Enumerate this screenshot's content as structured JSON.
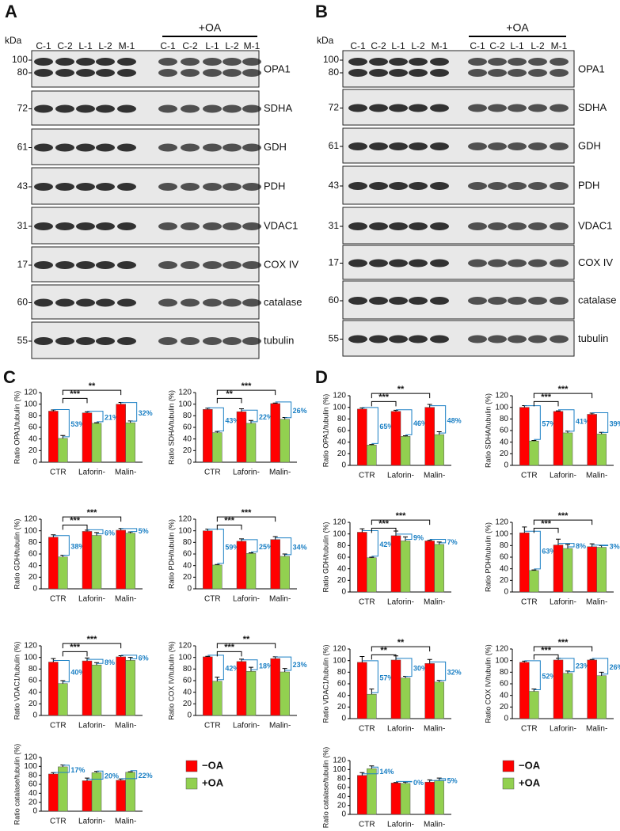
{
  "blots": [
    {
      "panel": "A",
      "unit": "kDa",
      "treatment": "+OA",
      "lanes": [
        "C-1",
        "C-2",
        "L-1",
        "L-2",
        "M-1",
        "C-1",
        "C-2",
        "L-1",
        "L-2",
        "M-1"
      ],
      "rows": [
        {
          "markers": [
            "100",
            "80"
          ],
          "protein": "OPA1"
        },
        {
          "markers": [
            "72"
          ],
          "protein": "SDHA"
        },
        {
          "markers": [
            "61"
          ],
          "protein": "GDH"
        },
        {
          "markers": [
            "43"
          ],
          "protein": "PDH"
        },
        {
          "markers": [
            "31"
          ],
          "protein": "VDAC1"
        },
        {
          "markers": [
            "17"
          ],
          "protein": "COX IV"
        },
        {
          "markers": [
            "60"
          ],
          "protein": "catalase"
        },
        {
          "markers": [
            "55"
          ],
          "protein": "tubulin"
        }
      ]
    },
    {
      "panel": "B",
      "unit": "kDa",
      "treatment": "+OA",
      "lanes": [
        "C-1",
        "C-2",
        "L-1",
        "L-2",
        "M-1",
        "C-1",
        "C-2",
        "L-1",
        "L-2",
        "M-1"
      ],
      "rows": [
        {
          "markers": [
            "100",
            "80"
          ],
          "protein": "OPA1"
        },
        {
          "markers": [
            "72"
          ],
          "protein": "SDHA"
        },
        {
          "markers": [
            "61"
          ],
          "protein": "GDH"
        },
        {
          "markers": [
            "43"
          ],
          "protein": "PDH"
        },
        {
          "markers": [
            "31"
          ],
          "protein": "VDAC1"
        },
        {
          "markers": [
            "17"
          ],
          "protein": "COX IV"
        },
        {
          "markers": [
            "60"
          ],
          "protein": "catalase"
        },
        {
          "markers": [
            "55"
          ],
          "protein": "tubulin"
        }
      ]
    }
  ],
  "chart_panels": [
    "C",
    "D"
  ],
  "chart_data": [
    {
      "type": "bar",
      "ylabel": "Ratio OPA1/tubulin (%)",
      "categories": [
        "CTR",
        "Laforin-",
        "Malin-"
      ],
      "ylim": [
        0,
        120
      ],
      "yticks": [
        0,
        20,
        40,
        60,
        80,
        100,
        120
      ],
      "series": [
        {
          "name": "−OA",
          "color": "#ff0000",
          "values": [
            88,
            85,
            100
          ],
          "errors": [
            2,
            2,
            3
          ]
        },
        {
          "name": "+OA",
          "color": "#92d050",
          "values": [
            41,
            67,
            68
          ],
          "errors": [
            5,
            1,
            3
          ]
        }
      ],
      "annotations": [
        "53%",
        "21%",
        "32%"
      ],
      "significance": [
        "***",
        "**"
      ]
    },
    {
      "type": "bar",
      "ylabel": "Ratio SDHA/tubulin (%)",
      "categories": [
        "CTR",
        "Laforin-",
        "Malin-"
      ],
      "ylim": [
        0,
        120
      ],
      "yticks": [
        0,
        20,
        40,
        60,
        80,
        100,
        120
      ],
      "series": [
        {
          "name": "−OA",
          "color": "#ff0000",
          "values": [
            91,
            87,
            101
          ],
          "errors": [
            2,
            5,
            1
          ]
        },
        {
          "name": "+OA",
          "color": "#92d050",
          "values": [
            51,
            67,
            74
          ],
          "errors": [
            2,
            5,
            3
          ]
        }
      ],
      "annotations": [
        "43%",
        "22%",
        "26%"
      ],
      "significance": [
        "**",
        "***"
      ]
    },
    {
      "type": "bar",
      "ylabel": "Ratio GDH/tubulin (%)",
      "categories": [
        "CTR",
        "Laforin-",
        "Malin-"
      ],
      "ylim": [
        0,
        120
      ],
      "yticks": [
        0,
        20,
        40,
        60,
        80,
        100,
        120
      ],
      "series": [
        {
          "name": "−OA",
          "color": "#ff0000",
          "values": [
            89,
            99,
            101
          ],
          "errors": [
            4,
            2,
            3
          ]
        },
        {
          "name": "+OA",
          "color": "#92d050",
          "values": [
            55,
            92,
            96
          ],
          "errors": [
            3,
            5,
            2
          ]
        }
      ],
      "annotations": [
        "38%",
        "6%",
        "5%"
      ],
      "significance": [
        "***",
        "***"
      ]
    },
    {
      "type": "bar",
      "ylabel": "Ratio PDH/tubulin (%)",
      "categories": [
        "CTR",
        "Laforin-",
        "Malin-"
      ],
      "ylim": [
        0,
        120
      ],
      "yticks": [
        0,
        20,
        40,
        60,
        80,
        100,
        120
      ],
      "series": [
        {
          "name": "−OA",
          "color": "#ff0000",
          "values": [
            100,
            82,
            85
          ],
          "errors": [
            3,
            4,
            5
          ]
        },
        {
          "name": "+OA",
          "color": "#92d050",
          "values": [
            41,
            61,
            56
          ],
          "errors": [
            1,
            1,
            4
          ]
        }
      ],
      "annotations": [
        "59%",
        "25%",
        "34%"
      ],
      "significance": [
        "***",
        "***"
      ]
    },
    {
      "type": "bar",
      "ylabel": "Ratio VDAC1/tubulin (%)",
      "categories": [
        "CTR",
        "Laforin-",
        "Malin-"
      ],
      "ylim": [
        0,
        120
      ],
      "yticks": [
        0,
        20,
        40,
        60,
        80,
        100,
        120
      ],
      "series": [
        {
          "name": "−OA",
          "color": "#ff0000",
          "values": [
            92,
            94,
            101
          ],
          "errors": [
            6,
            5,
            2
          ]
        },
        {
          "name": "+OA",
          "color": "#92d050",
          "values": [
            55,
            87,
            95
          ],
          "errors": [
            5,
            4,
            5
          ]
        }
      ],
      "annotations": [
        "40%",
        "8%",
        "6%"
      ],
      "significance": [
        "***",
        "***"
      ]
    },
    {
      "type": "bar",
      "ylabel": "Ratio COX IV/tubulin (%)",
      "categories": [
        "CTR",
        "Laforin-",
        "Malin-"
      ],
      "ylim": [
        0,
        120
      ],
      "yticks": [
        0,
        20,
        40,
        60,
        80,
        100,
        120
      ],
      "series": [
        {
          "name": "−OA",
          "color": "#ff0000",
          "values": [
            101,
            93,
            98
          ],
          "errors": [
            1,
            4,
            3
          ]
        },
        {
          "name": "+OA",
          "color": "#92d050",
          "values": [
            59,
            76,
            75
          ],
          "errors": [
            7,
            7,
            6
          ]
        }
      ],
      "annotations": [
        "42%",
        "18%",
        "23%"
      ],
      "significance": [
        "***",
        "**"
      ]
    },
    {
      "type": "bar",
      "ylabel": "Ratio catalase/tubulin (%)",
      "categories": [
        "CTR",
        "Laforin-",
        "Malin-"
      ],
      "ylim": [
        0,
        120
      ],
      "yticks": [
        0,
        20,
        40,
        60,
        80,
        100,
        120
      ],
      "series": [
        {
          "name": "−OA",
          "color": "#ff0000",
          "values": [
            83,
            68,
            69
          ],
          "errors": [
            3,
            6,
            3
          ]
        },
        {
          "name": "+OA",
          "color": "#92d050",
          "values": [
            99,
            86,
            87
          ],
          "errors": [
            4,
            3,
            1
          ]
        }
      ],
      "annotations": [
        "17%",
        "20%",
        "22%"
      ],
      "significance": []
    },
    {
      "type": "bar",
      "ylabel": "Ratio OPA1/tubulin (%)",
      "categories": [
        "CTR",
        "Laforin-",
        "Malin-"
      ],
      "ylim": [
        0,
        120
      ],
      "yticks": [
        0,
        20,
        40,
        60,
        80,
        100,
        120
      ],
      "series": [
        {
          "name": "−OA",
          "color": "#ff0000",
          "values": [
            97,
            93,
            100
          ],
          "errors": [
            2,
            2,
            5
          ]
        },
        {
          "name": "+OA",
          "color": "#92d050",
          "values": [
            35,
            50,
            53
          ],
          "errors": [
            1,
            1,
            5
          ]
        }
      ],
      "annotations": [
        "65%",
        "46%",
        "48%"
      ],
      "significance": [
        "***",
        "**"
      ]
    },
    {
      "type": "bar",
      "ylabel": "Ratio SDHA/tubulin (%)",
      "categories": [
        "CTR",
        "Laforin-",
        "Malin-"
      ],
      "ylim": [
        0,
        120
      ],
      "yticks": [
        0,
        20,
        40,
        60,
        80,
        100,
        120
      ],
      "series": [
        {
          "name": "−OA",
          "color": "#ff0000",
          "values": [
            100,
            93,
            88
          ],
          "errors": [
            3,
            1,
            2
          ]
        },
        {
          "name": "+OA",
          "color": "#92d050",
          "values": [
            42,
            56,
            54
          ],
          "errors": [
            1,
            3,
            3
          ]
        }
      ],
      "annotations": [
        "57%",
        "41%",
        "39%"
      ],
      "significance": [
        "***",
        "***"
      ]
    },
    {
      "type": "bar",
      "ylabel": "Ratio GDH/tubulin (%)",
      "categories": [
        "CTR",
        "Laforin-",
        "Malin-"
      ],
      "ylim": [
        0,
        120
      ],
      "yticks": [
        0,
        20,
        40,
        60,
        80,
        100,
        120
      ],
      "series": [
        {
          "name": "−OA",
          "color": "#ff0000",
          "values": [
            103,
            97,
            88
          ],
          "errors": [
            6,
            8,
            1
          ]
        },
        {
          "name": "+OA",
          "color": "#92d050",
          "values": [
            59,
            88,
            82
          ],
          "errors": [
            1,
            7,
            4
          ]
        }
      ],
      "annotations": [
        "42%",
        "9%",
        "7%"
      ],
      "significance": [
        "***",
        "***"
      ]
    },
    {
      "type": "bar",
      "ylabel": "Ratio PDH/tubulin (%)",
      "categories": [
        "CTR",
        "Laforin-",
        "Malin-"
      ],
      "ylim": [
        0,
        120
      ],
      "yticks": [
        0,
        20,
        40,
        60,
        80,
        100,
        120
      ],
      "series": [
        {
          "name": "−OA",
          "color": "#ff0000",
          "values": [
            102,
            81,
            78
          ],
          "errors": [
            10,
            10,
            5
          ]
        },
        {
          "name": "+OA",
          "color": "#92d050",
          "values": [
            37,
            75,
            77
          ],
          "errors": [
            1,
            7,
            3
          ]
        }
      ],
      "annotations": [
        "63%",
        "8%",
        "3%"
      ],
      "significance": [
        "***",
        "***"
      ]
    },
    {
      "type": "bar",
      "ylabel": "Ratio VDAC1/tubulin (%)",
      "categories": [
        "CTR",
        "Laforin-",
        "Malin-"
      ],
      "ylim": [
        0,
        120
      ],
      "yticks": [
        0,
        20,
        40,
        60,
        80,
        100,
        120
      ],
      "series": [
        {
          "name": "−OA",
          "color": "#ff0000",
          "values": [
            97,
            101,
            95
          ],
          "errors": [
            10,
            7,
            7
          ]
        },
        {
          "name": "+OA",
          "color": "#92d050",
          "values": [
            42,
            70,
            63
          ],
          "errors": [
            9,
            3,
            3
          ]
        }
      ],
      "annotations": [
        "57%",
        "30%",
        "32%"
      ],
      "significance": [
        "**",
        "**"
      ]
    },
    {
      "type": "bar",
      "ylabel": "Ratio COX IV/tubulin (%)",
      "categories": [
        "CTR",
        "Laforin-",
        "Malin-"
      ],
      "ylim": [
        0,
        120
      ],
      "yticks": [
        0,
        20,
        40,
        60,
        80,
        100,
        120
      ],
      "series": [
        {
          "name": "−OA",
          "color": "#ff0000",
          "values": [
            97,
            101,
            101
          ],
          "errors": [
            2,
            3,
            1
          ]
        },
        {
          "name": "+OA",
          "color": "#92d050",
          "values": [
            47,
            78,
            74
          ],
          "errors": [
            4,
            4,
            6
          ]
        }
      ],
      "annotations": [
        "52%",
        "23%",
        "26%"
      ],
      "significance": [
        "***",
        "***"
      ]
    },
    {
      "type": "bar",
      "ylabel": "Ratio catalase/tubulin (%)",
      "categories": [
        "CTR",
        "Laforin-",
        "Malin-"
      ],
      "ylim": [
        0,
        120
      ],
      "yticks": [
        0,
        20,
        40,
        60,
        80,
        100,
        120
      ],
      "series": [
        {
          "name": "−OA",
          "color": "#ff0000",
          "values": [
            87,
            70,
            72
          ],
          "errors": [
            6,
            1,
            5
          ]
        },
        {
          "name": "+OA",
          "color": "#92d050",
          "values": [
            102,
            69,
            76
          ],
          "errors": [
            6,
            3,
            5
          ]
        }
      ],
      "annotations": [
        "14%",
        "0%",
        "5%"
      ],
      "significance": []
    }
  ]
}
